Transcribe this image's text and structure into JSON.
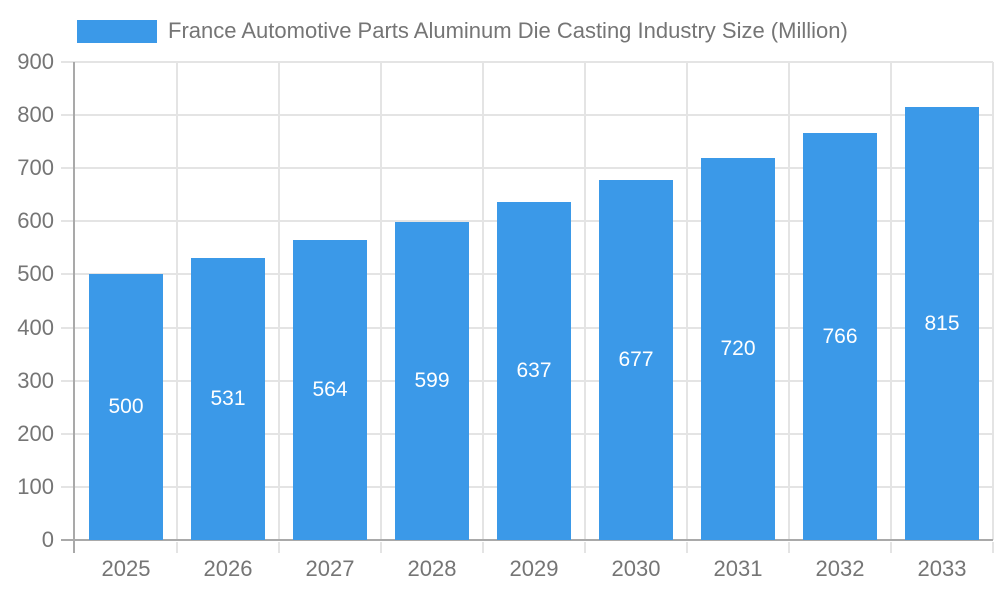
{
  "chart_data": {
    "type": "bar",
    "title": "France Automotive Parts Aluminum Die Casting Industry Size (Million)",
    "legend_position": "top-left",
    "categories": [
      "2025",
      "2026",
      "2027",
      "2028",
      "2029",
      "2030",
      "2031",
      "2032",
      "2033"
    ],
    "values": [
      500,
      531,
      564,
      599,
      637,
      677,
      720,
      766,
      815
    ],
    "series": [
      {
        "name": "France Automotive Parts Aluminum Die Casting Industry Size (Million)",
        "values": [
          500,
          531,
          564,
          599,
          637,
          677,
          720,
          766,
          815
        ]
      }
    ],
    "ylim": [
      0,
      900
    ],
    "y_ticks": [
      0,
      100,
      200,
      300,
      400,
      500,
      600,
      700,
      800,
      900
    ],
    "grid": true,
    "value_labels_inside_bars": true
  },
  "colors": {
    "bar": "#3b99e8",
    "value_label": "#ffffff",
    "axis_line": "#a9a9a9",
    "grid_line": "#e4e4e4",
    "tick_label": "#757575"
  }
}
